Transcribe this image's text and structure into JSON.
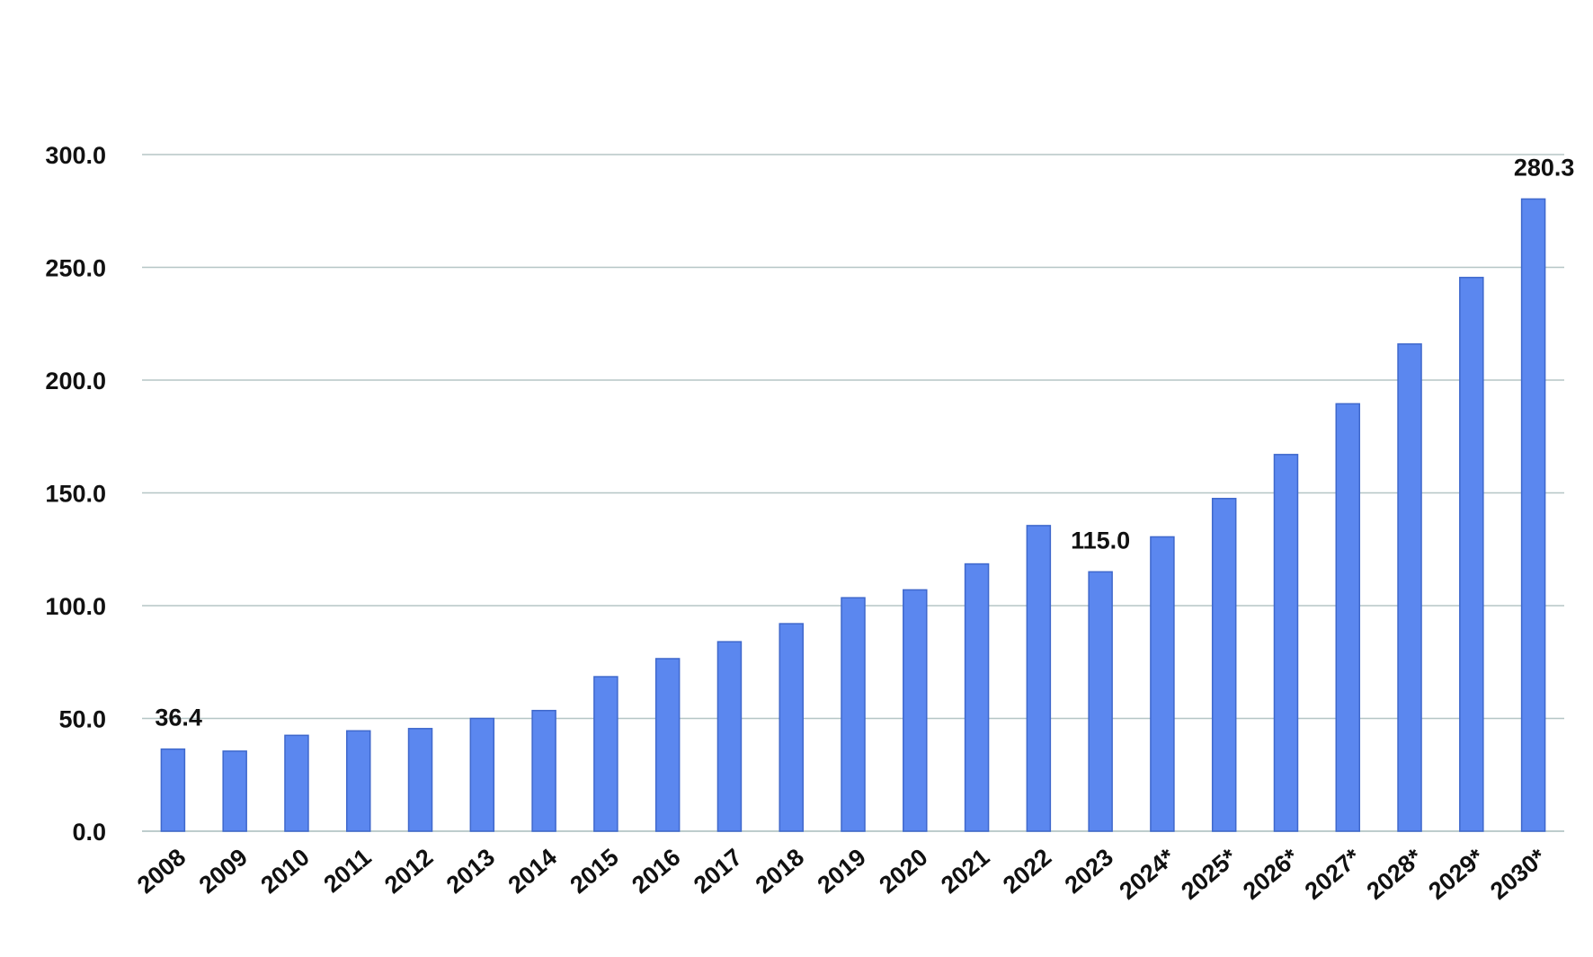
{
  "chart_data": {
    "type": "bar",
    "categories": [
      "2008",
      "2009",
      "2010",
      "2011",
      "2012",
      "2013",
      "2014",
      "2015",
      "2016",
      "2017",
      "2018",
      "2019",
      "2020",
      "2021",
      "2022",
      "2023",
      "2024*",
      "2025*",
      "2026*",
      "2027*",
      "2028*",
      "2029*",
      "2030*"
    ],
    "values": [
      36.4,
      35.5,
      42.5,
      44.5,
      45.5,
      50.0,
      53.5,
      68.5,
      76.5,
      84.0,
      92.0,
      103.5,
      107.0,
      118.5,
      135.5,
      115.0,
      130.5,
      147.5,
      167.0,
      189.5,
      216.0,
      245.5,
      280.3
    ],
    "ylim": [
      0,
      300
    ],
    "yticks": [
      "0.0",
      "50.0",
      "100.0",
      "150.0",
      "200.0",
      "250.0",
      "300.0"
    ],
    "data_labels": [
      {
        "category": "2008",
        "text": "36.4"
      },
      {
        "category": "2023",
        "text": "115.0"
      },
      {
        "category": "2030*",
        "text": "280.3"
      }
    ],
    "grid": true,
    "legend": "none",
    "colors": {
      "bar": "#5b87ef",
      "bar_edge": "#3f68cc",
      "grid": "#b5c6c6",
      "text": "#111111"
    }
  }
}
